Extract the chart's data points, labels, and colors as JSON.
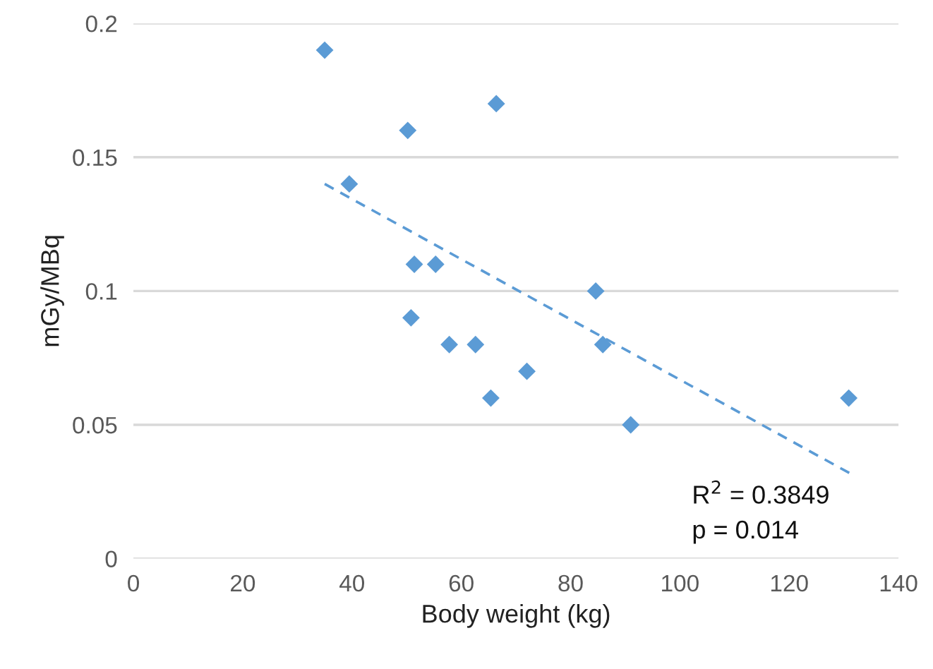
{
  "chart_data": {
    "type": "scatter",
    "xlabel": "Body weight (kg)",
    "ylabel": "mGy/MBq",
    "xlim": [
      0,
      140
    ],
    "xticks": [
      0,
      20,
      40,
      60,
      80,
      100,
      120,
      140
    ],
    "ylim": [
      0,
      0.2
    ],
    "yticks": [
      0,
      0.05,
      0.1,
      0.15,
      0.2
    ],
    "grid": "y",
    "marker": "diamond",
    "series": [
      {
        "color": "#5b9bd5",
        "x": [
          35,
          66.4,
          50.2,
          39.5,
          51.4,
          55.3,
          84.6,
          50.8,
          57.8,
          62.6,
          85.9,
          72.0,
          65.4,
          91.0,
          130.9
        ],
        "values": [
          0.19,
          0.17,
          0.16,
          0.14,
          0.11,
          0.11,
          0.1,
          0.09,
          0.08,
          0.08,
          0.08,
          0.07,
          0.06,
          0.05,
          0.06
        ]
      },
      {
        "type": "line",
        "color": "#5b9bd5",
        "line_style": "dashed",
        "marker": "none",
        "x": [
          35,
          131
        ],
        "values": [
          0.14,
          0.032
        ]
      }
    ],
    "annotations": [
      "R$^{2}$ = 0.3849",
      "p = 0.014"
    ]
  }
}
